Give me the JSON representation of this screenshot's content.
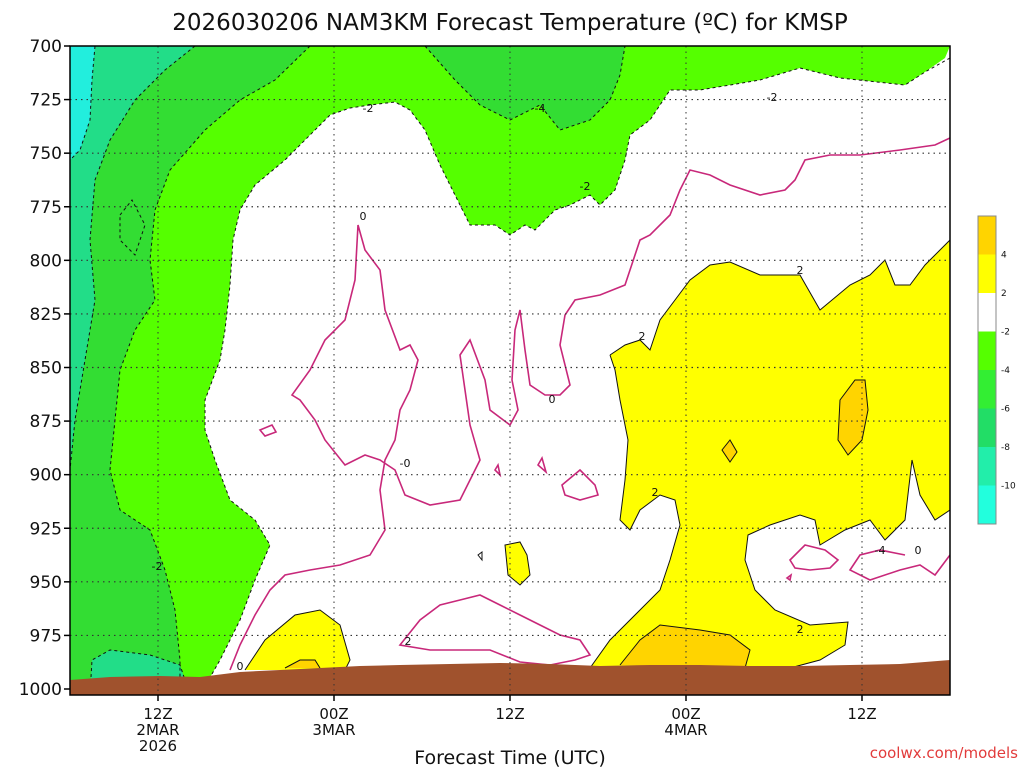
{
  "chart_data": {
    "type": "contour",
    "title": "2026030206 NAM3KM Forecast Temperature (ºC) for KMSP",
    "xlabel": "Forecast Time (UTC)",
    "ylabel": "",
    "y_axis": {
      "label": "",
      "ticks": [
        "700",
        "725",
        "750",
        "775",
        "800",
        "825",
        "850",
        "875",
        "900",
        "925",
        "950",
        "975",
        "1000"
      ],
      "ylim": [
        700,
        1000
      ],
      "grid": true
    },
    "x_axis": {
      "ticks": [
        {
          "lines": [
            "12Z",
            "2MAR",
            "2026"
          ]
        },
        {
          "lines": [
            "00Z",
            "3MAR"
          ]
        },
        {
          "lines": [
            "12Z"
          ]
        },
        {
          "lines": [
            "00Z",
            "4MAR"
          ]
        },
        {
          "lines": [
            "12Z"
          ]
        }
      ],
      "grid": true
    },
    "legend": {
      "placement": "right",
      "bins": [
        {
          "label": "",
          "color": "#ffd400"
        },
        {
          "label": "4",
          "color": "#ffff00"
        },
        {
          "label": "2",
          "color": "#ffffff"
        },
        {
          "label": "-2",
          "color": "#55ff00"
        },
        {
          "label": "-4",
          "color": "#33ee33"
        },
        {
          "label": "-6",
          "color": "#22dd66"
        },
        {
          "label": "-8",
          "color": "#22eeaa"
        },
        {
          "label": "-10",
          "color": "#22ffdd"
        }
      ]
    },
    "contour_labels": [
      "-2",
      "-4",
      "-2",
      "-2",
      "0",
      "-2",
      "2",
      "2",
      "0",
      "-0",
      "2",
      "-4",
      "0",
      "2",
      "2",
      "0"
    ],
    "fill_colors": {
      "cyan": "#22eedd",
      "teal": "#22dd88",
      "green1": "#33dd33",
      "green2": "#55ff00",
      "white": "#ffffff",
      "yellow": "#ffff00",
      "gold": "#ffd400",
      "ground": "#a0522d",
      "zero_line": "#c8287a"
    }
  },
  "credit": "coolwx.com/models"
}
